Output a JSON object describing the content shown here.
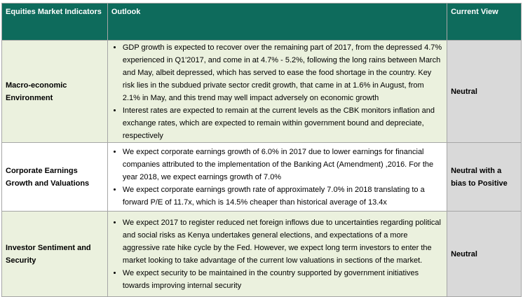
{
  "header": [
    "Equities Market Indicators",
    "Outlook",
    "Current View"
  ],
  "rows": [
    {
      "indicator": "Macro-economic Environment",
      "outlook": [
        "GDP growth is expected to recover over the remaining part of 2017, from the depressed 4.7% experienced in Q1'2017, and come in at 4.7% - 5.2%, following the long rains between March and May, albeit depressed, which has served to ease the food shortage in the country. Key risk lies in the subdued private sector credit growth, that came in at 1.6% in August, from 2.1% in May, and this trend may well impact adversely on economic growth",
        "Interest rates are expected to remain at the current levels as the CBK monitors inflation and exchange rates, which are expected to remain within government bound and depreciate, respectively"
      ],
      "view": "Neutral"
    },
    {
      "indicator": "Corporate Earnings Growth and Valuations",
      "outlook": [
        "We expect corporate earnings growth of 6.0% in 2017 due to lower earnings for financial companies attributed to the implementation of the Banking Act (Amendment) ,2016. For the year 2018, we expect earnings growth of 7.0%",
        "We expect corporate earnings growth rate of approximately 7.0%  in 2018 translating to a forward P/E of 11.7x, which is 14.5% cheaper than historical average of 13.4x"
      ],
      "view": "Neutral with a bias to Positive"
    },
    {
      "indicator": "Investor Sentiment and Security",
      "outlook": [
        "We expect 2017 to register reduced net foreign inflows due to uncertainties regarding political and social risks as Kenya undertakes general elections, and expectations of a more aggressive rate hike cycle by the Fed. However, we expect long term investors to enter the market looking to take advantage of the current low valuations in sections of the market.",
        "We expect security to be maintained in the country supported by government initiatives towards improving internal security"
      ],
      "view": "Neutral"
    }
  ]
}
